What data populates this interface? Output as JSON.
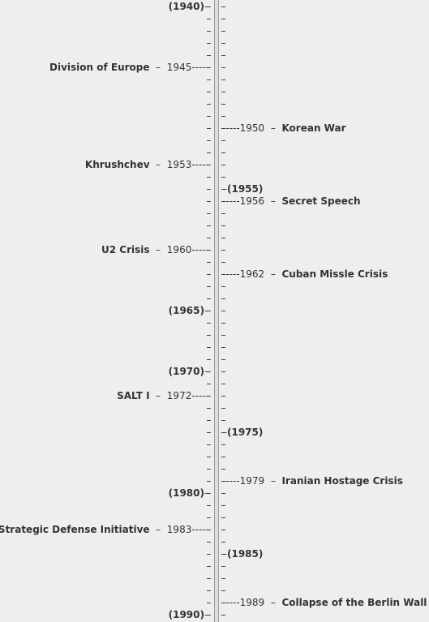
{
  "timeline": {
    "start_year": 1940,
    "end_year": 1990,
    "year_markers": [
      "(1940)",
      "(1955)",
      "(1965)",
      "(1970)",
      "(1975)",
      "(1980)",
      "(1985)",
      "(1990)"
    ],
    "events": [
      {
        "year": 1945,
        "side": "left",
        "label": "Division of Europe"
      },
      {
        "year": 1950,
        "side": "right",
        "label": "Korean War"
      },
      {
        "year": 1953,
        "side": "left",
        "label": "Khrushchev"
      },
      {
        "year": 1956,
        "side": "right",
        "label": "Secret Speech"
      },
      {
        "year": 1960,
        "side": "left",
        "label": "U2 Crisis"
      },
      {
        "year": 1962,
        "side": "right",
        "label": "Cuban Missle Crisis"
      },
      {
        "year": 1972,
        "side": "left",
        "label": "SALT I"
      },
      {
        "year": 1979,
        "side": "right",
        "label": "Iranian Hostage Crisis"
      },
      {
        "year": 1983,
        "side": "left",
        "label": "Strategic Defense Initiative"
      },
      {
        "year": 1989,
        "side": "right",
        "label": "Collapse of the Berlin Wall"
      }
    ],
    "markers": [
      {
        "year": 1940,
        "side": "left",
        "label": "(1940)"
      },
      {
        "year": 1955,
        "side": "right",
        "label": "(1955)"
      },
      {
        "year": 1965,
        "side": "left",
        "label": "(1965)"
      },
      {
        "year": 1970,
        "side": "left",
        "label": "(1970)"
      },
      {
        "year": 1975,
        "side": "right",
        "label": "(1975)"
      },
      {
        "year": 1980,
        "side": "left",
        "label": "(1980)"
      },
      {
        "year": 1985,
        "side": "right",
        "label": "(1985)"
      },
      {
        "year": 1990,
        "side": "left",
        "label": "(1990)"
      }
    ]
  }
}
